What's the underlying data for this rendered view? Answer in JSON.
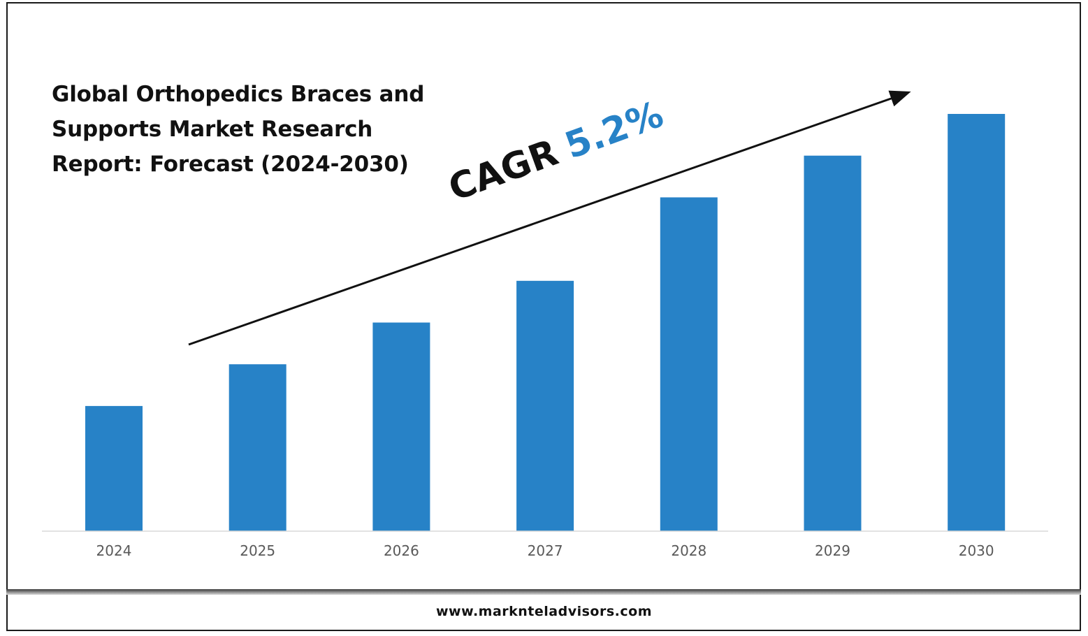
{
  "title_lines": [
    "Global Orthopedics Braces and",
    "Supports Market Research",
    "Report: Forecast (2024-2030)"
  ],
  "annotation": {
    "label": "CAGR",
    "value": "5.2%"
  },
  "footer": {
    "website": "www.marknteladvisors.com"
  },
  "colors": {
    "bar": "#2782c7",
    "cagr_value": "#2782c7",
    "axis_line": "#d9d9d9",
    "tick_label": "#595959"
  },
  "chart_data": {
    "type": "bar",
    "title": "Global Orthopedics Braces and Supports Market Research Report: Forecast (2024-2030)",
    "categories": [
      "2024",
      "2025",
      "2026",
      "2027",
      "2028",
      "2029",
      "2030"
    ],
    "values": [
      30,
      40,
      50,
      60,
      80,
      90,
      100
    ],
    "ylim": [
      0,
      100
    ],
    "xlabel": "",
    "ylabel": "",
    "grid": false,
    "legend": "none",
    "annotation": "CAGR 5.2%"
  }
}
